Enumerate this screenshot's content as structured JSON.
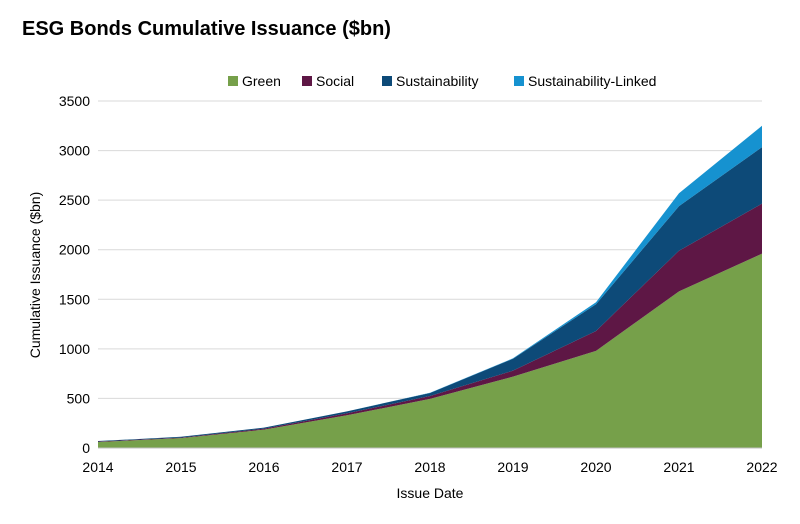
{
  "chart_data": {
    "type": "area",
    "stacked": true,
    "title": "ESG Bonds Cumulative Issuance ($bn)",
    "xlabel": "Issue Date",
    "ylabel": "Cumulative Issuance ($bn)",
    "ylim": [
      0,
      3500
    ],
    "yticks": [
      0,
      500,
      1000,
      1500,
      2000,
      2500,
      3000,
      3500
    ],
    "categories": [
      "2014",
      "2015",
      "2016",
      "2017",
      "2018",
      "2019",
      "2020",
      "2021",
      "2022"
    ],
    "grid": "horizontal",
    "legend_position": "top",
    "series": [
      {
        "name": "Green",
        "color": "#76a04a",
        "values": [
          60,
          100,
          185,
          330,
          495,
          720,
          980,
          1580,
          1960
        ]
      },
      {
        "name": "Social",
        "color": "#5e1745",
        "values": [
          5,
          5,
          10,
          20,
          30,
          60,
          200,
          410,
          505
        ]
      },
      {
        "name": "Sustainability",
        "color": "#0d4a78",
        "values": [
          5,
          8,
          10,
          20,
          30,
          120,
          270,
          450,
          570
        ]
      },
      {
        "name": "Sustainability-Linked",
        "color": "#1692d0",
        "values": [
          0,
          0,
          0,
          0,
          2,
          5,
          20,
          130,
          215
        ]
      }
    ]
  }
}
